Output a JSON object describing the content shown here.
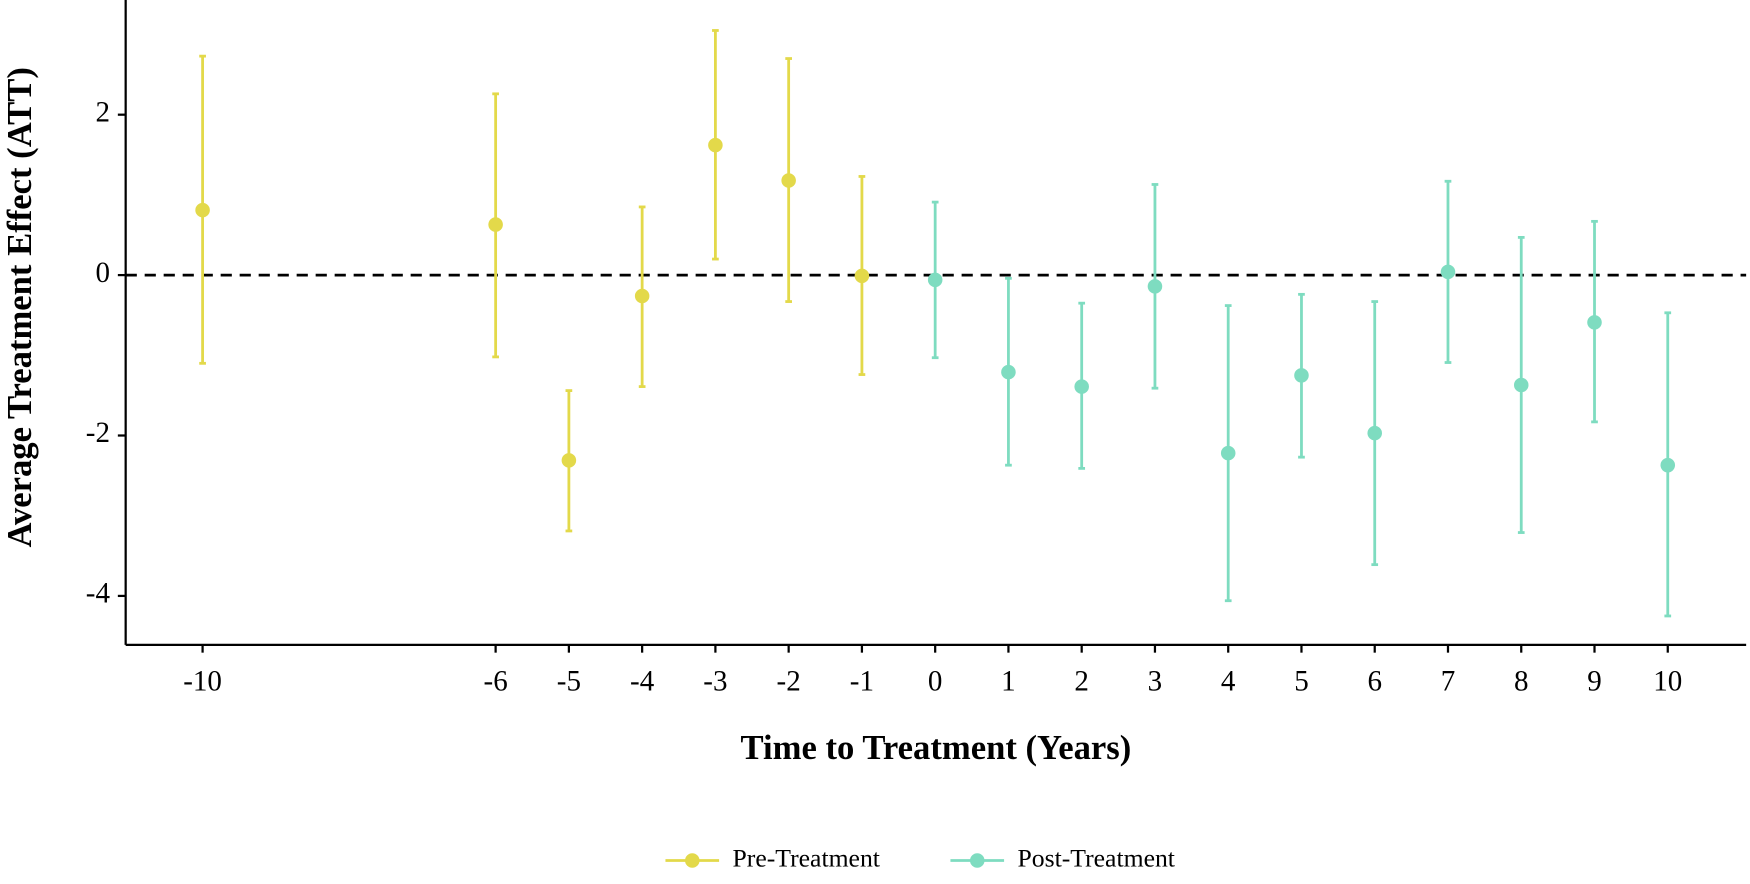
{
  "chart_data": {
    "type": "errorbar",
    "xlabel": "Time to Treatment (Years)",
    "ylabel": "Average Treatment Effect (ATT)",
    "xlim": [
      -11.05,
      11.07
    ],
    "ylim": [
      -4.61,
      3.43
    ],
    "xticks": [
      -10,
      -6,
      -5,
      -4,
      -3,
      -2,
      -1,
      0,
      1,
      2,
      3,
      4,
      5,
      6,
      7,
      8,
      9,
      10
    ],
    "yticks": [
      -4,
      -2,
      0,
      2
    ],
    "hline": 0,
    "legend": "bottom",
    "series": [
      {
        "name": "Pre-Treatment",
        "color": "#e3d94a",
        "x": [
          -10,
          -6,
          -5,
          -4,
          -3,
          -2,
          -1
        ],
        "values": [
          0.81,
          0.63,
          -2.31,
          -0.26,
          1.62,
          1.18,
          -0.01
        ],
        "lower": [
          -1.1,
          -1.02,
          -3.19,
          -1.39,
          0.2,
          -0.33,
          -1.24
        ],
        "upper": [
          2.73,
          2.26,
          -1.44,
          0.85,
          3.05,
          2.7,
          1.23
        ]
      },
      {
        "name": "Post-Treatment",
        "color": "#7edcc0",
        "x": [
          0,
          1,
          2,
          3,
          4,
          5,
          6,
          7,
          8,
          9,
          10
        ],
        "values": [
          -0.06,
          -1.21,
          -1.39,
          -0.14,
          -2.22,
          -1.25,
          -1.97,
          0.04,
          -1.37,
          -0.59,
          -2.37
        ],
        "lower": [
          -1.03,
          -2.37,
          -2.41,
          -1.41,
          -4.06,
          -2.27,
          -3.61,
          -1.09,
          -3.21,
          -1.83,
          -4.25
        ],
        "upper": [
          0.91,
          -0.04,
          -0.35,
          1.13,
          -0.38,
          -0.24,
          -0.33,
          1.17,
          0.47,
          0.67,
          -0.47
        ]
      }
    ]
  }
}
